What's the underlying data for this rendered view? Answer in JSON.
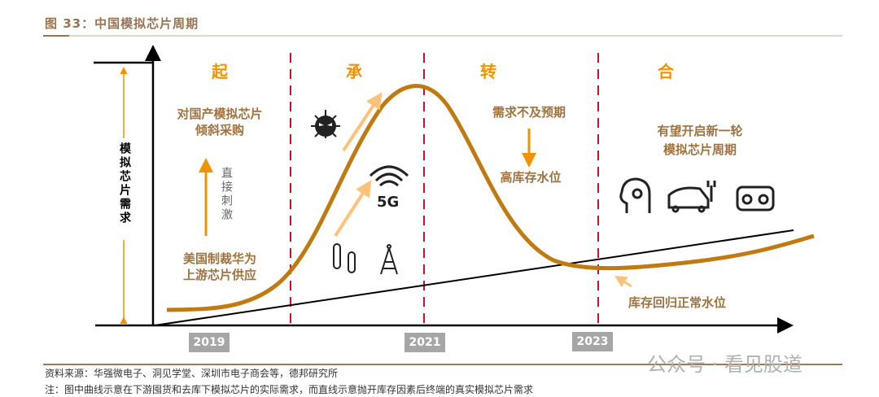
{
  "title": "图 33：中国模拟芯片周期",
  "y_axis_label": "模拟芯片需求",
  "phases": [
    "起",
    "承",
    "转",
    "合"
  ],
  "years": [
    "2019",
    "2021",
    "2023"
  ],
  "annotations": {
    "qi_top": [
      "对国产模拟芯片",
      "倾斜采购"
    ],
    "qi_arrow": "直接刺激",
    "qi_bottom": [
      "美国制裁华为",
      "上游芯片供应"
    ],
    "cheng_icon_label": "5G",
    "zhuan_top": "需求不及预期",
    "zhuan_bottom": "高库存水位",
    "he_top": [
      "有望开启新一轮",
      "模拟芯片周期"
    ],
    "he_bottom": "库存回归正常水位"
  },
  "footer": {
    "source": "资料来源：华强微电子、洞见学堂、深圳市电子商会等，德邦研究所",
    "note": "注：图中曲线示意在下游囤货和去库下模拟芯片的实际需求，而直线示意抛开库存因素后终端的真实模拟芯片需求"
  },
  "watermark": "公众号 · 看见股道",
  "colors": {
    "curve": "#c07a10",
    "accent": "#f39200",
    "divider": "#d0102a",
    "text_brown": "#a0723d"
  }
}
